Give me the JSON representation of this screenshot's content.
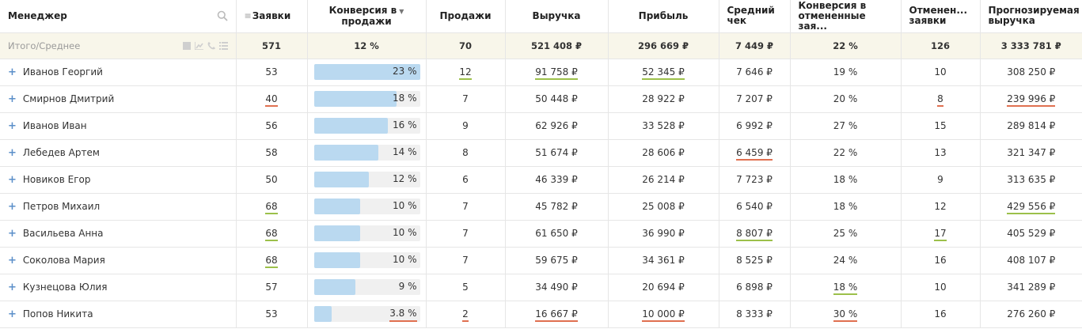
{
  "columns": {
    "manager": "Менеджер",
    "leads": "Заявки",
    "conversion_line1": "Конверсия в",
    "conversion_line2": "продажи",
    "sales": "Продажи",
    "revenue": "Выручка",
    "profit": "Прибыль",
    "avg_check_line1": "Средний",
    "avg_check_line2": "чек",
    "cancel_conv_line1": "Конверсия в",
    "cancel_conv_line2": "отмененные зая...",
    "cancelled_line1": "Отменен...",
    "cancelled_line2": "заявки",
    "forecast_line1": "Прогнозируемая",
    "forecast_line2": "выручка"
  },
  "icons": {
    "search": "search-icon",
    "menu": "hamburger-icon",
    "sort": "sort-desc-icon"
  },
  "totals": {
    "label": "Итого/Среднее",
    "leads": "571",
    "conversion": "12 %",
    "sales": "70",
    "revenue": "521 408 ₽",
    "profit": "296 669 ₽",
    "avg_check": "7 449 ₽",
    "cancel_conv": "22 %",
    "cancelled": "126",
    "forecast": "3 333 781 ₽"
  },
  "colors": {
    "bar_fill": "#bad9f0",
    "good_underline": "#9cc04a",
    "bad_underline": "#e07050",
    "totals_bg": "#f8f6ea"
  },
  "rows": [
    {
      "name": "Иванов Георгий",
      "leads": "53",
      "conv_pct": 23,
      "conv": "23 %",
      "sales": "12",
      "revenue": "91 758 ₽",
      "profit": "52 345 ₽",
      "avg": "7 646 ₽",
      "cconv": "19 %",
      "cancelled": "10",
      "forecast": "308 250 ₽",
      "marks": {
        "sales": "green",
        "revenue": "green",
        "profit": "green"
      }
    },
    {
      "name": "Смирнов Дмитрий",
      "leads": "40",
      "conv_pct": 18,
      "conv": "18 %",
      "sales": "7",
      "revenue": "50 448 ₽",
      "profit": "28 922 ₽",
      "avg": "7 207 ₽",
      "cconv": "20 %",
      "cancelled": "8",
      "forecast": "239 996 ₽",
      "marks": {
        "leads": "red",
        "cancelled": "red",
        "forecast": "red"
      }
    },
    {
      "name": "Иванов Иван",
      "leads": "56",
      "conv_pct": 16,
      "conv": "16 %",
      "sales": "9",
      "revenue": "62 926 ₽",
      "profit": "33 528 ₽",
      "avg": "6 992 ₽",
      "cconv": "27 %",
      "cancelled": "15",
      "forecast": "289 814 ₽",
      "marks": {}
    },
    {
      "name": "Лебедев Артем",
      "leads": "58",
      "conv_pct": 14,
      "conv": "14 %",
      "sales": "8",
      "revenue": "51 674 ₽",
      "profit": "28 606 ₽",
      "avg": "6 459 ₽",
      "cconv": "22 %",
      "cancelled": "13",
      "forecast": "321 347 ₽",
      "marks": {
        "avg": "red"
      }
    },
    {
      "name": "Новиков Егор",
      "leads": "50",
      "conv_pct": 12,
      "conv": "12 %",
      "sales": "6",
      "revenue": "46 339 ₽",
      "profit": "26 214 ₽",
      "avg": "7 723 ₽",
      "cconv": "18 %",
      "cancelled": "9",
      "forecast": "313 635 ₽",
      "marks": {}
    },
    {
      "name": "Петров Михаил",
      "leads": "68",
      "conv_pct": 10,
      "conv": "10 %",
      "sales": "7",
      "revenue": "45 782 ₽",
      "profit": "25 008 ₽",
      "avg": "6 540 ₽",
      "cconv": "18 %",
      "cancelled": "12",
      "forecast": "429 556 ₽",
      "marks": {
        "leads": "green",
        "forecast": "green"
      }
    },
    {
      "name": "Васильева Анна",
      "leads": "68",
      "conv_pct": 10,
      "conv": "10 %",
      "sales": "7",
      "revenue": "61 650 ₽",
      "profit": "36 990 ₽",
      "avg": "8 807 ₽",
      "cconv": "25 %",
      "cancelled": "17",
      "forecast": "405 529 ₽",
      "marks": {
        "leads": "green",
        "avg": "green",
        "cancelled": "green"
      }
    },
    {
      "name": "Соколова Мария",
      "leads": "68",
      "conv_pct": 10,
      "conv": "10 %",
      "sales": "7",
      "revenue": "59 675 ₽",
      "profit": "34 361 ₽",
      "avg": "8 525 ₽",
      "cconv": "24 %",
      "cancelled": "16",
      "forecast": "408 107 ₽",
      "marks": {
        "leads": "green"
      }
    },
    {
      "name": "Кузнецова Юлия",
      "leads": "57",
      "conv_pct": 9,
      "conv": "9 %",
      "sales": "5",
      "revenue": "34 490 ₽",
      "profit": "20 694 ₽",
      "avg": "6 898 ₽",
      "cconv": "18 %",
      "cancelled": "10",
      "forecast": "341 289 ₽",
      "marks": {
        "cconv": "green"
      }
    },
    {
      "name": "Попов Никита",
      "leads": "53",
      "conv_pct": 3.8,
      "conv": "3.8 %",
      "sales": "2",
      "revenue": "16 667 ₽",
      "profit": "10 000 ₽",
      "avg": "8 333 ₽",
      "cconv": "30 %",
      "cancelled": "16",
      "forecast": "276 260 ₽",
      "marks": {
        "conv": "red",
        "sales": "red",
        "revenue": "red",
        "profit": "red",
        "cconv": "red"
      }
    }
  ]
}
